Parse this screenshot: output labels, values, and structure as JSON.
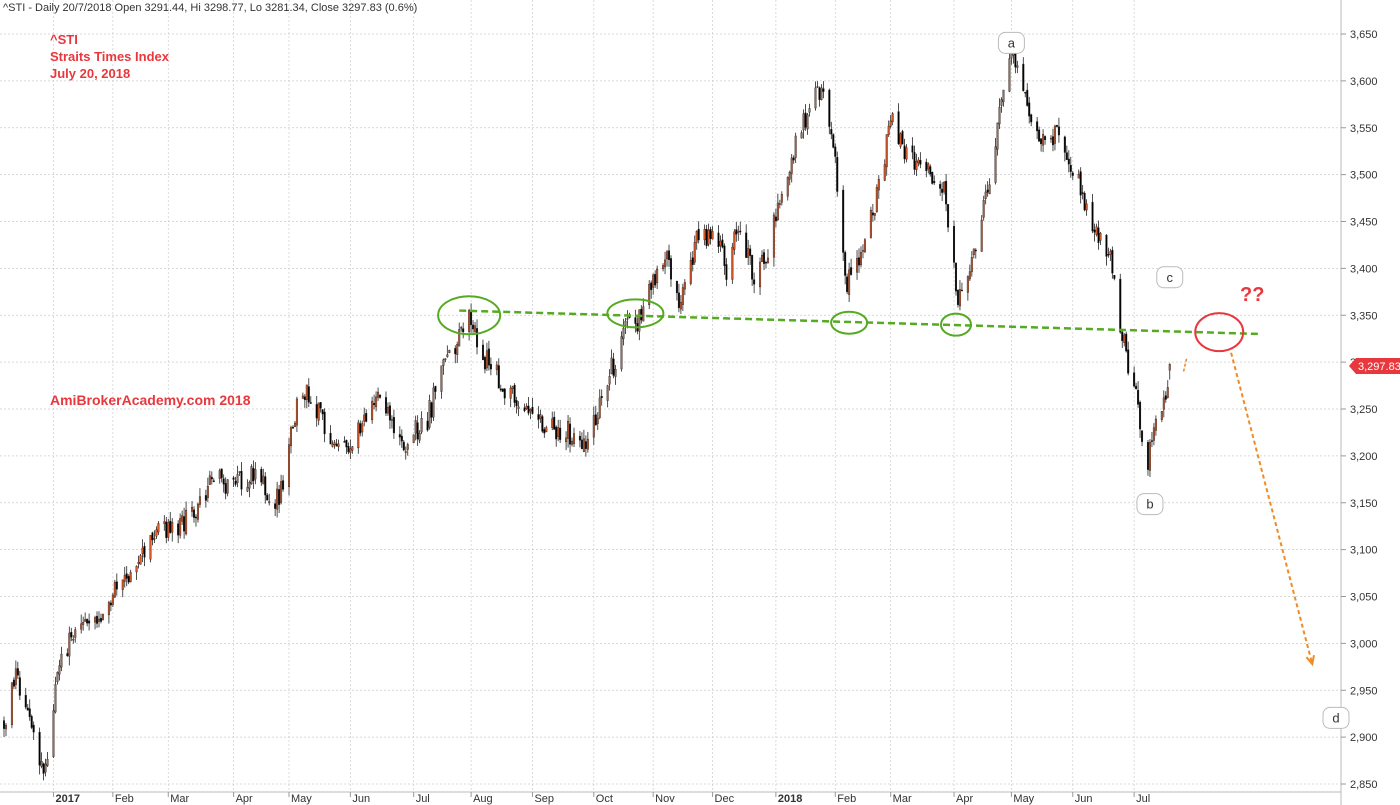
{
  "header": {
    "info": "^STI - Daily 20/7/2018 Open 3291.44, Hi 3298.77, Lo 3281.34, Close 3297.83 (0.6%)"
  },
  "annotations": {
    "title_lines": [
      "^STI",
      "Straits Times Index",
      "July 20, 2018"
    ],
    "watermark": "AmiBrokerAcademy.com  2018",
    "labels": {
      "a": "a",
      "b": "b",
      "c": "c",
      "d": "d",
      "question": "??"
    },
    "last_price_tag": "3,297.83"
  },
  "colors": {
    "up": "#d4582a",
    "down": "#000000",
    "neckline": "#55aa22",
    "circle_green": "#55aa22",
    "circle_red": "#e8383d",
    "arrow": "#f08a24",
    "text_red": "#e8383d",
    "grid": "#cccccc"
  },
  "chart_data": {
    "type": "candlestick",
    "ylim": [
      2850,
      3650
    ],
    "y_ticks": [
      2850,
      2900,
      2950,
      3000,
      3050,
      3100,
      3150,
      3200,
      3250,
      3300,
      3350,
      3400,
      3450,
      3500,
      3550,
      3600,
      3650
    ],
    "y_tick_labels": [
      "2,850",
      "2,900",
      "2,950",
      "3,000",
      "3,050",
      "3,100",
      "3,150",
      "3,200",
      "3,250",
      "3,300",
      "3,350",
      "3,400",
      "3,450",
      "3,500",
      "3,550",
      "3,600",
      "3,650"
    ],
    "x_ticks": [
      {
        "label": "2017",
        "date": "2017-01-02",
        "bold": true
      },
      {
        "label": "Feb",
        "date": "2017-02-01"
      },
      {
        "label": "Mar",
        "date": "2017-03-01"
      },
      {
        "label": "Apr",
        "date": "2017-04-03"
      },
      {
        "label": "May",
        "date": "2017-05-01"
      },
      {
        "label": "Jun",
        "date": "2017-06-01"
      },
      {
        "label": "Jul",
        "date": "2017-07-03"
      },
      {
        "label": "Aug",
        "date": "2017-08-01"
      },
      {
        "label": "Sep",
        "date": "2017-09-01"
      },
      {
        "label": "Oct",
        "date": "2017-10-02"
      },
      {
        "label": "Nov",
        "date": "2017-11-01"
      },
      {
        "label": "Dec",
        "date": "2017-12-01"
      },
      {
        "label": "2018",
        "date": "2018-01-02",
        "bold": true
      },
      {
        "label": "Feb",
        "date": "2018-02-01"
      },
      {
        "label": "Mar",
        "date": "2018-03-01"
      },
      {
        "label": "Apr",
        "date": "2018-04-02"
      },
      {
        "label": "May",
        "date": "2018-05-01"
      },
      {
        "label": "Jun",
        "date": "2018-06-01"
      },
      {
        "label": "Jul",
        "date": "2018-07-02"
      }
    ],
    "price_path": [
      [
        "2016-12-08",
        2915
      ],
      [
        "2016-12-13",
        2965
      ],
      [
        "2016-12-20",
        2940
      ],
      [
        "2016-12-27",
        2862
      ],
      [
        "2016-12-30",
        2885
      ],
      [
        "2017-01-06",
        2990
      ],
      [
        "2017-01-13",
        3010
      ],
      [
        "2017-01-24",
        3030
      ],
      [
        "2017-02-03",
        3060
      ],
      [
        "2017-02-14",
        3090
      ],
      [
        "2017-02-24",
        3115
      ],
      [
        "2017-03-03",
        3120
      ],
      [
        "2017-03-13",
        3135
      ],
      [
        "2017-03-24",
        3175
      ],
      [
        "2017-04-05",
        3170
      ],
      [
        "2017-04-13",
        3180
      ],
      [
        "2017-04-24",
        3150
      ],
      [
        "2017-04-28",
        3170
      ],
      [
        "2017-05-03",
        3240
      ],
      [
        "2017-05-10",
        3270
      ],
      [
        "2017-05-22",
        3220
      ],
      [
        "2017-06-01",
        3215
      ],
      [
        "2017-06-14",
        3265
      ],
      [
        "2017-06-28",
        3210
      ],
      [
        "2017-07-10",
        3240
      ],
      [
        "2017-07-20",
        3305
      ],
      [
        "2017-07-31",
        3345
      ],
      [
        "2017-08-09",
        3300
      ],
      [
        "2017-08-21",
        3265
      ],
      [
        "2017-09-06",
        3230
      ],
      [
        "2017-09-19",
        3225
      ],
      [
        "2017-09-28",
        3210
      ],
      [
        "2017-10-09",
        3280
      ],
      [
        "2017-10-17",
        3330
      ],
      [
        "2017-10-26",
        3350
      ],
      [
        "2017-11-02",
        3390
      ],
      [
        "2017-11-08",
        3410
      ],
      [
        "2017-11-14",
        3360
      ],
      [
        "2017-11-23",
        3430
      ],
      [
        "2017-12-01",
        3440
      ],
      [
        "2017-12-08",
        3400
      ],
      [
        "2017-12-15",
        3450
      ],
      [
        "2017-12-22",
        3390
      ],
      [
        "2017-12-29",
        3420
      ],
      [
        "2018-01-05",
        3490
      ],
      [
        "2018-01-15",
        3550
      ],
      [
        "2018-01-25",
        3595
      ],
      [
        "2018-01-31",
        3540
      ],
      [
        "2018-02-06",
        3380
      ],
      [
        "2018-02-14",
        3410
      ],
      [
        "2018-02-22",
        3480
      ],
      [
        "2018-03-02",
        3560
      ],
      [
        "2018-03-09",
        3520
      ],
      [
        "2018-03-20",
        3500
      ],
      [
        "2018-03-28",
        3480
      ],
      [
        "2018-04-04",
        3360
      ],
      [
        "2018-04-12",
        3420
      ],
      [
        "2018-04-20",
        3490
      ],
      [
        "2018-04-27",
        3600
      ],
      [
        "2018-05-02",
        3630
      ],
      [
        "2018-05-10",
        3560
      ],
      [
        "2018-05-18",
        3540
      ],
      [
        "2018-05-25",
        3545
      ],
      [
        "2018-06-04",
        3490
      ],
      [
        "2018-06-11",
        3440
      ],
      [
        "2018-06-19",
        3420
      ],
      [
        "2018-06-26",
        3330
      ],
      [
        "2018-07-04",
        3250
      ],
      [
        "2018-07-09",
        3190
      ],
      [
        "2018-07-13",
        3240
      ],
      [
        "2018-07-18",
        3260
      ],
      [
        "2018-07-20",
        3297.83
      ]
    ],
    "last_candle": {
      "date": "2018-07-20",
      "open": 3291.44,
      "high": 3298.77,
      "low": 3281.34,
      "close": 3297.83
    },
    "neckline": {
      "from": [
        "2017-07-26",
        3355
      ],
      "to": [
        "2018-09-04",
        3330
      ]
    },
    "green_circles": [
      {
        "date": "2017-07-31",
        "price": 3350
      },
      {
        "date": "2017-10-23",
        "price": 3352
      },
      {
        "date": "2018-02-08",
        "price": 3342
      },
      {
        "date": "2018-04-03",
        "price": 3340
      }
    ],
    "red_circle": {
      "date": "2018-08-14",
      "price": 3332
    },
    "arrow": {
      "from": [
        "2018-08-20",
        3310
      ],
      "to": [
        "2018-09-30",
        2978
      ]
    },
    "wave_points": {
      "a": {
        "date": "2018-05-01",
        "price": 3640
      },
      "b": {
        "date": "2018-07-10",
        "price": 3148
      },
      "c": {
        "date": "2018-07-20",
        "price": 3390
      },
      "d": {
        "date": "2018-10-12",
        "price": 2920
      }
    }
  }
}
